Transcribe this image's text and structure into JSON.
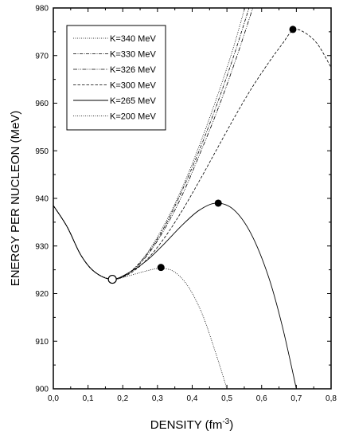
{
  "chart_data": {
    "type": "line",
    "xlabel": "DENSITY (fm",
    "xlabel_sup": "-3",
    "xlabel_end": ")",
    "ylabel": "ENERGY PER NUCLEON (MeV)",
    "xlim": [
      0.0,
      0.8
    ],
    "ylim": [
      900,
      980
    ],
    "xticks": [
      "0,0",
      "0,1",
      "0,2",
      "0,3",
      "0,4",
      "0,5",
      "0,6",
      "0,7",
      "0,8"
    ],
    "yticks": [
      "900",
      "910",
      "920",
      "930",
      "940",
      "950",
      "960",
      "970",
      "980"
    ],
    "legend_position": "top-left",
    "saturation_point": {
      "x": 0.17,
      "y": 923
    },
    "series": [
      {
        "name": "K=340 MeV",
        "dash": "1,1.5",
        "width": 0.8,
        "x": [
          0.0,
          0.04,
          0.08,
          0.12,
          0.17,
          0.22,
          0.27,
          0.32,
          0.37,
          0.42,
          0.47,
          0.52,
          0.57,
          0.6
        ],
        "y": [
          938.5,
          934,
          928,
          924.5,
          923,
          924.5,
          928.5,
          934.5,
          942,
          951,
          961,
          972,
          985,
          993
        ]
      },
      {
        "name": "K=330 MeV",
        "dash": "4,1.5,1,1.5",
        "width": 0.8,
        "x": [
          0.0,
          0.04,
          0.08,
          0.12,
          0.17,
          0.22,
          0.27,
          0.32,
          0.37,
          0.42,
          0.47,
          0.52,
          0.57,
          0.61
        ],
        "y": [
          938.5,
          934,
          928,
          924.5,
          923,
          924.5,
          928.3,
          934,
          941.5,
          950,
          959.5,
          970,
          981.5,
          991
        ]
      },
      {
        "name": "K=326 MeV",
        "dash": "5,1.5,1,1.5,1,1.5",
        "width": 0.8,
        "x": [
          0.0,
          0.04,
          0.08,
          0.12,
          0.17,
          0.22,
          0.27,
          0.32,
          0.37,
          0.42,
          0.47,
          0.52,
          0.57,
          0.63
        ],
        "y": [
          938.5,
          934,
          928,
          924.5,
          923,
          924.4,
          928,
          933.5,
          940.5,
          949,
          958,
          968,
          979,
          993
        ]
      },
      {
        "name": "K=300 MeV",
        "dash": "3.5,2",
        "width": 0.8,
        "x": [
          0.0,
          0.04,
          0.08,
          0.12,
          0.17,
          0.22,
          0.27,
          0.32,
          0.37,
          0.42,
          0.47,
          0.52,
          0.57,
          0.62,
          0.66,
          0.69,
          0.72,
          0.76,
          0.8
        ],
        "y": [
          938.5,
          934,
          928,
          924.5,
          923,
          924.2,
          927.2,
          931.7,
          937.3,
          943.6,
          950.2,
          956.8,
          963.0,
          968.5,
          972.5,
          975.3,
          975.0,
          972.5,
          967.5
        ]
      },
      {
        "name": "K=265 MeV",
        "dash": "",
        "width": 0.9,
        "x": [
          0.0,
          0.04,
          0.08,
          0.12,
          0.17,
          0.22,
          0.27,
          0.32,
          0.37,
          0.42,
          0.47,
          0.52,
          0.57,
          0.62,
          0.66,
          0.7
        ],
        "y": [
          938.5,
          934,
          928,
          924.5,
          923,
          924.5,
          927.0,
          930.5,
          934.3,
          937.5,
          939.0,
          937.6,
          932.5,
          923.5,
          913.0,
          900.0
        ]
      },
      {
        "name": "K=200 MeV",
        "dash": "1,1.5",
        "width": 0.8,
        "x": [
          0.0,
          0.04,
          0.08,
          0.12,
          0.17,
          0.22,
          0.27,
          0.31,
          0.35,
          0.39,
          0.43,
          0.47,
          0.5
        ],
        "y": [
          938.5,
          934,
          928,
          924.5,
          923,
          923.8,
          924.8,
          925.3,
          924.5,
          921.3,
          915.5,
          907.0,
          900.0
        ]
      }
    ],
    "markers": [
      {
        "x": 0.31,
        "y": 925.5
      },
      {
        "x": 0.475,
        "y": 939.0
      },
      {
        "x": 0.69,
        "y": 975.5
      }
    ]
  }
}
